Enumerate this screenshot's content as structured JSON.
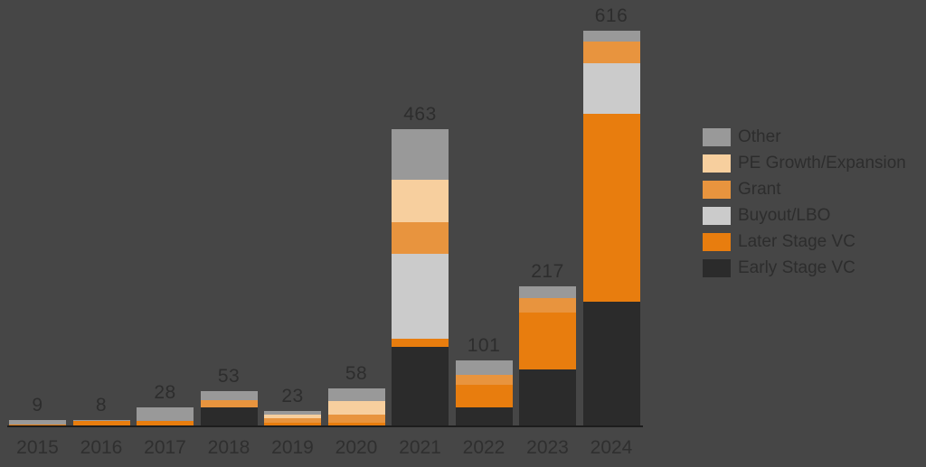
{
  "chart_data": {
    "type": "bar",
    "stacked": true,
    "title": "",
    "xlabel": "",
    "ylabel": "",
    "grid": false,
    "legend_position": "right",
    "background_color": "#464646",
    "text_color": "#2d2d2d",
    "axis_line_color": "#1d1d1d",
    "categories": [
      "2015",
      "2016",
      "2017",
      "2018",
      "2019",
      "2020",
      "2021",
      "2022",
      "2023",
      "2024"
    ],
    "totals": [
      9,
      8,
      28,
      53,
      23,
      58,
      463,
      101,
      217,
      616
    ],
    "series": [
      {
        "name": "Early Stage VC",
        "color": "#2b2b2b",
        "values": [
          0,
          0,
          0,
          28,
          0,
          0,
          123,
          28,
          87,
          193
        ]
      },
      {
        "name": "Later Stage VC",
        "color": "#e87d0e",
        "values": [
          1,
          7,
          7,
          0,
          4,
          4,
          12,
          36,
          90,
          294
        ]
      },
      {
        "name": "Buyout/LBO",
        "color": "#cbcbcb",
        "values": [
          0,
          0,
          0,
          0,
          0,
          0,
          133,
          0,
          0,
          78
        ]
      },
      {
        "name": "Grant",
        "color": "#e8943e",
        "values": [
          0,
          0,
          0,
          11,
          8,
          13,
          50,
          15,
          22,
          34
        ]
      },
      {
        "name": "PE Growth/Expansion",
        "color": "#f7cf9e",
        "values": [
          0,
          0,
          0,
          0,
          5,
          21,
          66,
          0,
          0,
          0
        ]
      },
      {
        "name": "Other",
        "color": "#999999",
        "values": [
          8,
          1,
          21,
          14,
          6,
          20,
          79,
          22,
          18,
          17
        ]
      }
    ],
    "legend_order": [
      "Other",
      "PE Growth/Expansion",
      "Grant",
      "Buyout/LBO",
      "Later Stage VC",
      "Early Stage VC"
    ],
    "ylim": [
      0,
      660
    ]
  }
}
